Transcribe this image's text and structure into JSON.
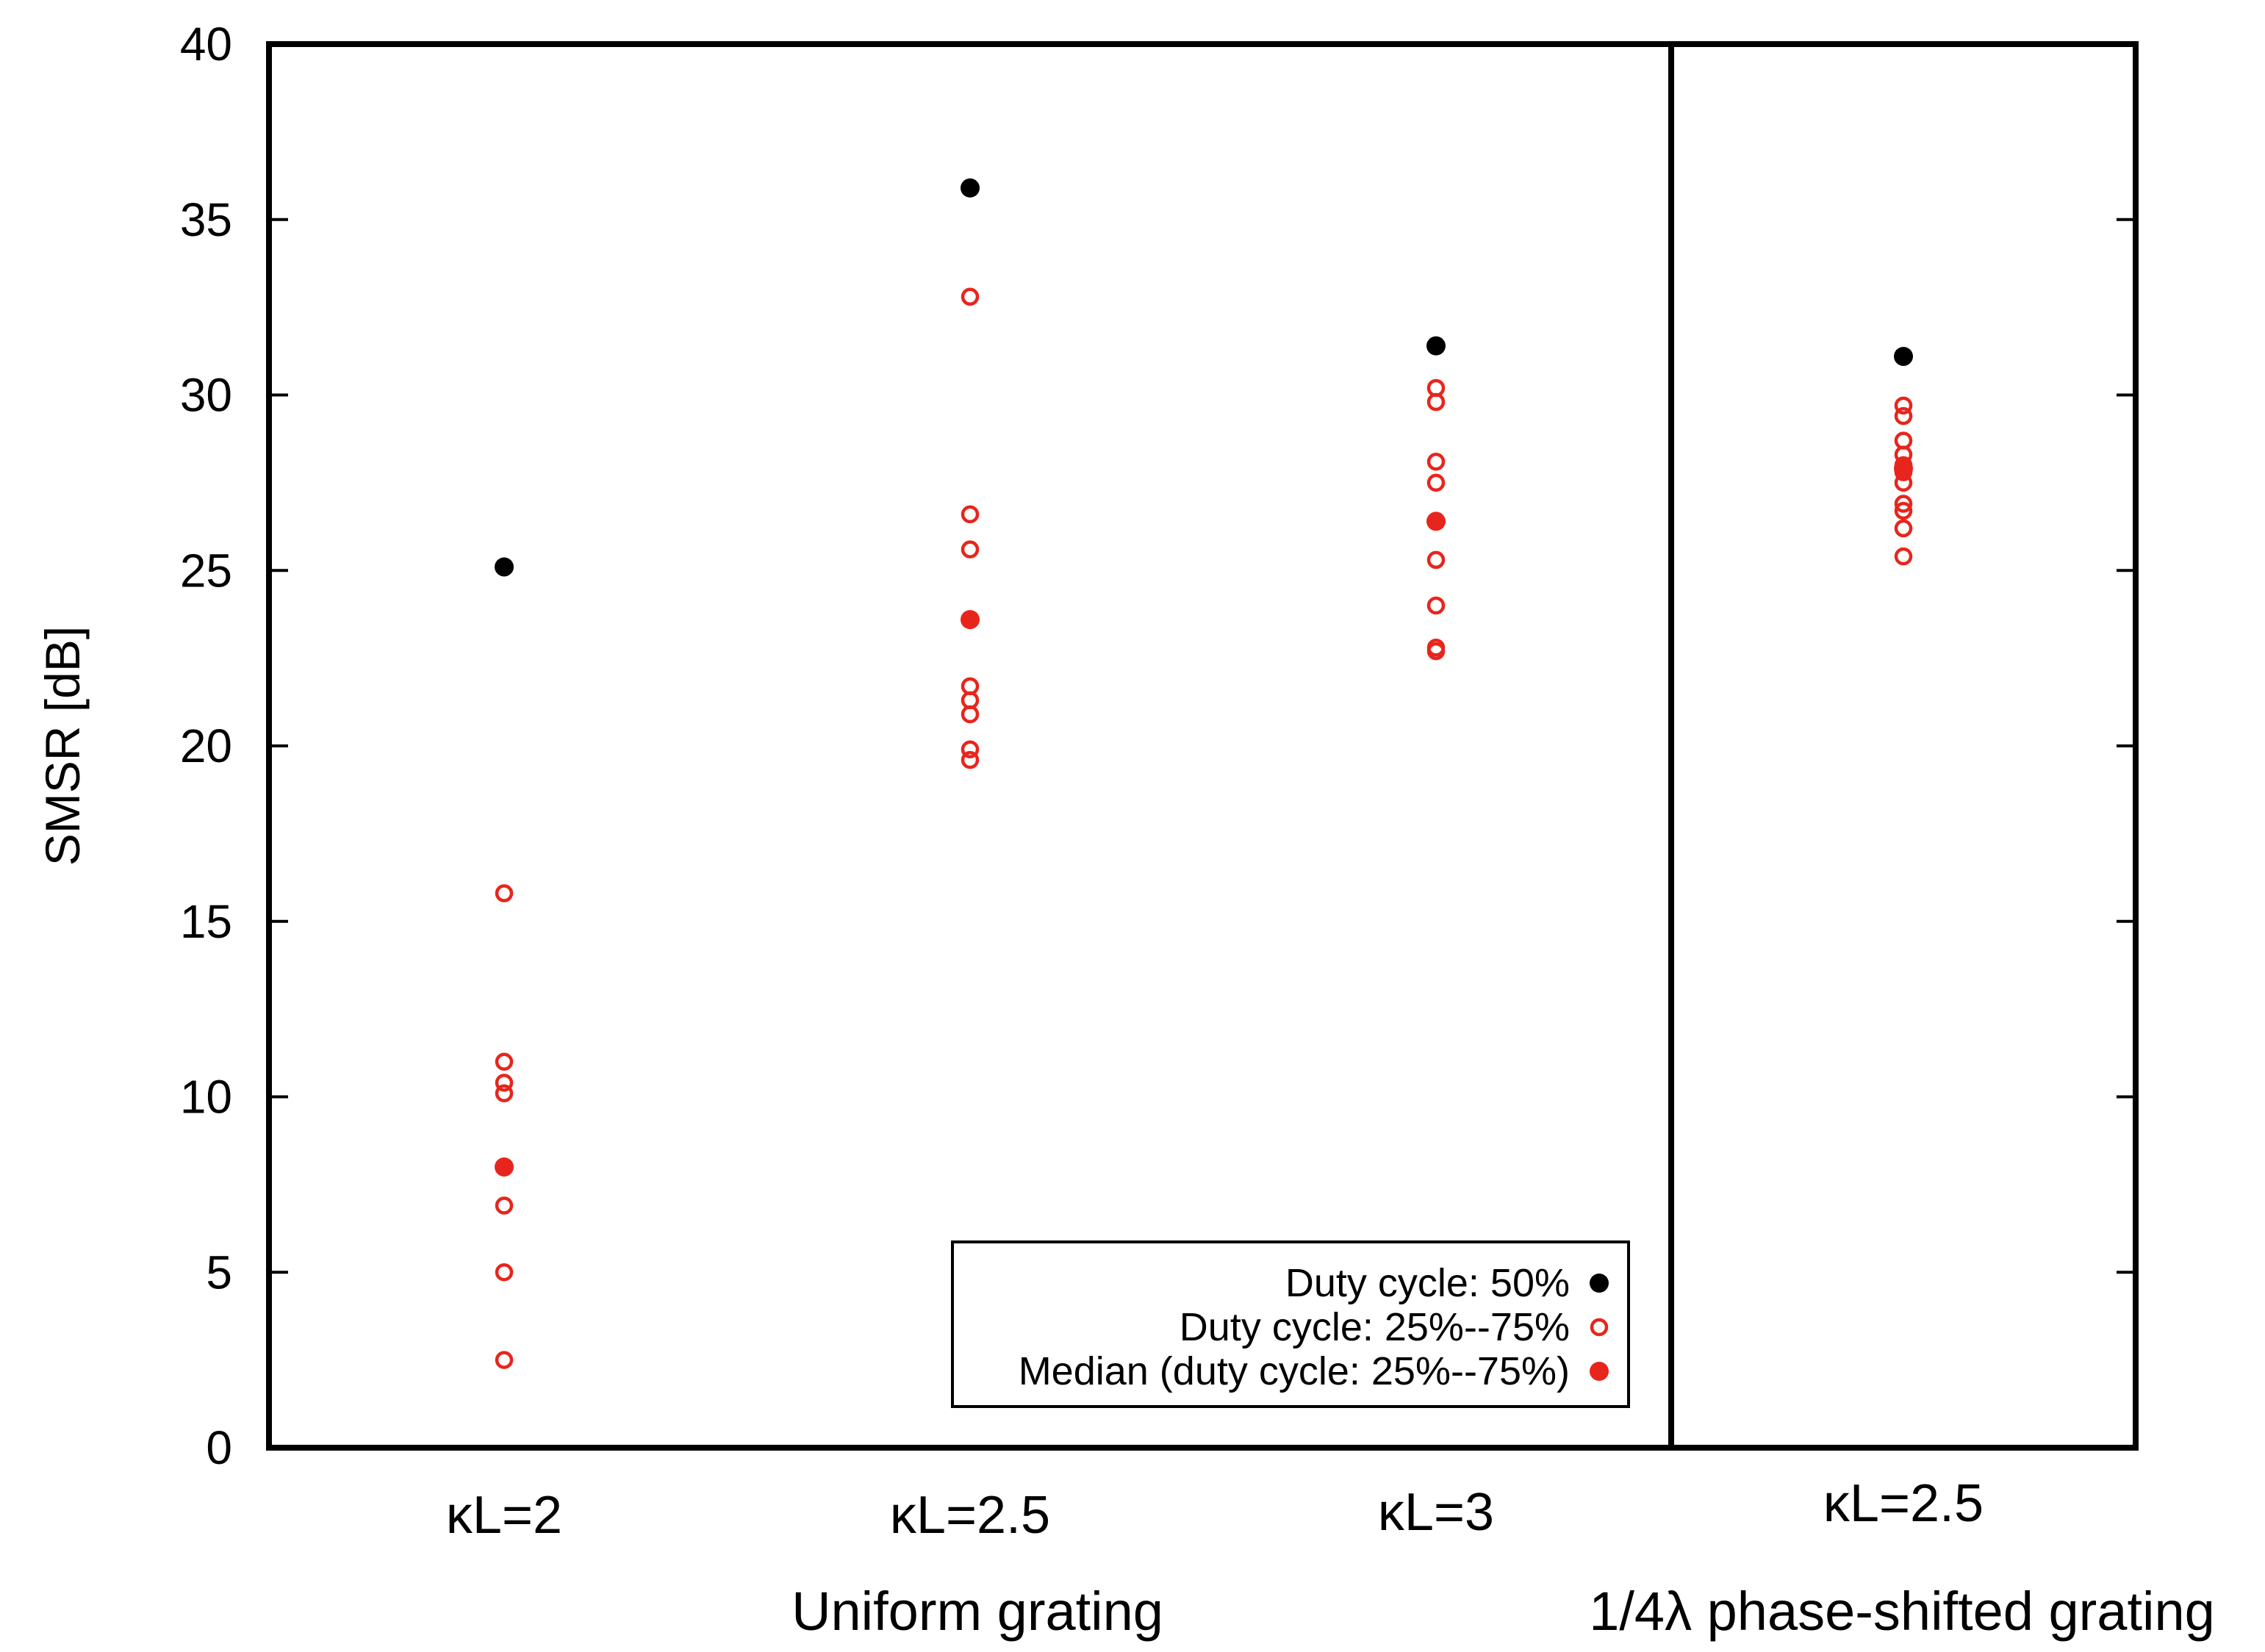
{
  "chart_data": {
    "type": "scatter",
    "title": "",
    "ylabel": "SMSR [dB]",
    "xlabel": "",
    "ylim": [
      0,
      40
    ],
    "yticks": [
      "0",
      "5",
      "10",
      "15",
      "20",
      "25",
      "30",
      "35",
      "40"
    ],
    "categories": [
      "κL=2",
      "κL=2.5",
      "κL=3",
      "κL=2.5"
    ],
    "groups": [
      {
        "label": "Uniform grating",
        "categories": [
          0,
          1,
          2
        ]
      },
      {
        "label": "1/4λ phase-shifted grating",
        "categories": [
          3
        ]
      }
    ],
    "series": [
      {
        "name": "Duty cycle: 50%",
        "color": "#000000",
        "marker": "filled-circle",
        "values": [
          [
            0,
            25.1
          ],
          [
            1,
            35.9
          ],
          [
            2,
            31.4
          ],
          [
            3,
            31.1
          ]
        ]
      },
      {
        "name": "Duty cycle: 25%--75%",
        "color": "#e8251c",
        "marker": "open-circle",
        "values": [
          [
            0,
            15.8
          ],
          [
            0,
            11.0
          ],
          [
            0,
            10.4
          ],
          [
            0,
            10.1
          ],
          [
            0,
            8.0
          ],
          [
            0,
            6.9
          ],
          [
            0,
            5.0
          ],
          [
            0,
            2.5
          ],
          [
            1,
            32.8
          ],
          [
            1,
            26.6
          ],
          [
            1,
            25.6
          ],
          [
            1,
            23.6
          ],
          [
            1,
            21.7
          ],
          [
            1,
            21.3
          ],
          [
            1,
            20.9
          ],
          [
            1,
            19.9
          ],
          [
            1,
            19.6
          ],
          [
            2,
            30.2
          ],
          [
            2,
            29.8
          ],
          [
            2,
            28.1
          ],
          [
            2,
            27.5
          ],
          [
            2,
            26.4
          ],
          [
            2,
            25.3
          ],
          [
            2,
            24.0
          ],
          [
            2,
            22.8
          ],
          [
            2,
            22.7
          ],
          [
            3,
            29.7
          ],
          [
            3,
            29.4
          ],
          [
            3,
            28.7
          ],
          [
            3,
            28.3
          ],
          [
            3,
            28.0
          ],
          [
            3,
            27.8
          ],
          [
            3,
            27.5
          ],
          [
            3,
            26.9
          ],
          [
            3,
            26.7
          ],
          [
            3,
            26.2
          ],
          [
            3,
            25.4
          ]
        ]
      },
      {
        "name": "Median (duty cycle: 25%--75%)",
        "color": "#e8251c",
        "marker": "filled-circle",
        "values": [
          [
            0,
            8.0
          ],
          [
            1,
            23.6
          ],
          [
            2,
            26.4
          ],
          [
            3,
            27.9
          ]
        ]
      }
    ],
    "legend": {
      "position": "bottom-right-of-uniform-section"
    },
    "separator_after_category": 2,
    "grid": false
  }
}
